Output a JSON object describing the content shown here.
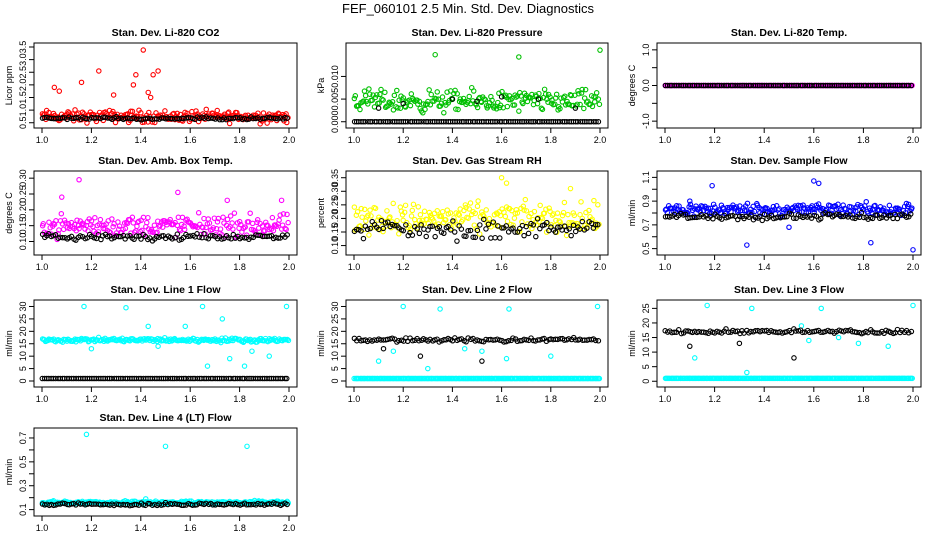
{
  "title": "FEF_060101  2.5 Min. Std. Dev. Diagnostics",
  "colors": {
    "red": "#ff0000",
    "green": "#00c000",
    "magenta": "#ff00ff",
    "yellow": "#ffff00",
    "blue": "#0000ff",
    "cyan": "#00ffff",
    "black": "#000000"
  },
  "chart_data": [
    {
      "type": "scatter",
      "title": "Stan. Dev. Li-820 CO2",
      "xlabel": "",
      "ylabel": "Licor ppm",
      "xlim": [
        1.0,
        2.0
      ],
      "ylim": [
        0.45,
        3.5
      ],
      "xticks": [
        "1.0",
        "1.2",
        "1.4",
        "1.6",
        "1.8",
        "2.0"
      ],
      "yticks": [
        0.5,
        1.0,
        1.5,
        2.0,
        2.5,
        3.0,
        3.5
      ],
      "ytick_labels": [
        "0.5",
        "1.0",
        "1.5",
        "2.0",
        "2.5",
        "3.0",
        "3.5"
      ],
      "series": [
        {
          "color": "red",
          "base": 0.75,
          "spread": 0.35,
          "spikes": [
            [
              1.05,
              1.9
            ],
            [
              1.07,
              1.75
            ],
            [
              1.16,
              2.1
            ],
            [
              1.23,
              2.55
            ],
            [
              1.29,
              1.6
            ],
            [
              1.37,
              2.0
            ],
            [
              1.38,
              2.4
            ],
            [
              1.41,
              3.38
            ],
            [
              1.43,
              1.7
            ],
            [
              1.45,
              2.4
            ],
            [
              1.47,
              2.55
            ],
            [
              1.44,
              1.5
            ]
          ]
        },
        {
          "color": "black",
          "base": 0.68,
          "spread": 0.08,
          "spikes": []
        }
      ]
    },
    {
      "type": "scatter",
      "title": "Stan. Dev. Li-820 Pressure",
      "xlabel": "",
      "ylabel": "kPa",
      "xlim": [
        1.0,
        2.0
      ],
      "ylim": [
        -0.0005,
        0.0165
      ],
      "xticks": [
        "1.0",
        "1.2",
        "1.4",
        "1.6",
        "1.8",
        "2.0"
      ],
      "yticks": [
        0.0,
        0.005,
        0.01
      ],
      "ytick_labels": [
        "0.000",
        "0.005",
        "0.010"
      ],
      "series": [
        {
          "color": "green",
          "base": 0.0045,
          "spread": 0.0035,
          "spikes": [
            [
              1.33,
              0.0148
            ],
            [
              1.67,
              0.0143
            ],
            [
              2.0,
              0.0158
            ]
          ]
        },
        {
          "color": "black",
          "base": 0.0,
          "spread": 0.0,
          "spikes": [
            [
              1.2,
              0.004
            ],
            [
              1.4,
              0.005
            ],
            [
              1.6,
              0.0055
            ],
            [
              1.75,
              0.005
            ],
            [
              1.9,
              0.003
            ],
            [
              1.1,
              0.003
            ],
            [
              1.5,
              0.0045
            ]
          ]
        }
      ]
    },
    {
      "type": "scatter",
      "title": "Stan. Dev. Li-820 Temp.",
      "xlabel": "",
      "ylabel": "degrees C",
      "xlim": [
        1.0,
        2.0
      ],
      "ylim": [
        -1.08,
        1.08
      ],
      "xticks": [
        "1.0",
        "1.2",
        "1.4",
        "1.6",
        "1.8",
        "2.0"
      ],
      "yticks": [
        -1.0,
        -0.5,
        0.0,
        0.5,
        1.0
      ],
      "ytick_labels": [
        "-1.0",
        "",
        "0.0",
        "",
        "1.0"
      ],
      "series": [
        {
          "color": "magenta",
          "base": 0.0,
          "spread": 0.0,
          "spikes": []
        },
        {
          "color": "black",
          "base": 0.0,
          "spread": 0.0,
          "spikes": []
        }
      ]
    },
    {
      "type": "scatter",
      "title": "Stan. Dev. Amb. Box Temp.",
      "xlabel": "",
      "ylabel": "degrees C",
      "xlim": [
        1.0,
        2.0
      ],
      "ylim": [
        0.07,
        0.31
      ],
      "xticks": [
        "1.0",
        "1.2",
        "1.4",
        "1.6",
        "1.8",
        "2.0"
      ],
      "yticks": [
        0.1,
        0.15,
        0.2,
        0.25,
        0.3
      ],
      "ytick_labels": [
        "0.10",
        "0.15",
        "0.20",
        "0.25",
        "0.30"
      ],
      "series": [
        {
          "color": "magenta",
          "base": 0.15,
          "spread": 0.05,
          "spikes": [
            [
              1.15,
              0.295
            ],
            [
              1.08,
              0.24
            ],
            [
              1.55,
              0.255
            ],
            [
              1.75,
              0.23
            ],
            [
              1.97,
              0.23
            ]
          ]
        },
        {
          "color": "black",
          "base": 0.115,
          "spread": 0.015,
          "spikes": []
        }
      ]
    },
    {
      "type": "scatter",
      "title": "Stan. Dev. Gas Stream RH",
      "xlabel": "",
      "ylabel": "percent",
      "xlim": [
        1.0,
        2.0
      ],
      "ylim": [
        0.08,
        0.36
      ],
      "xticks": [
        "1.0",
        "1.2",
        "1.4",
        "1.6",
        "1.8",
        "2.0"
      ],
      "yticks": [
        0.1,
        0.15,
        0.2,
        0.25,
        0.3,
        0.35
      ],
      "ytick_labels": [
        "0.10",
        "0.15",
        "0.20",
        "0.25",
        "0.30",
        "0.35"
      ],
      "series": [
        {
          "color": "yellow",
          "base": 0.2,
          "spread": 0.08,
          "spikes": [
            [
              1.6,
              0.35
            ],
            [
              1.62,
              0.33
            ],
            [
              1.88,
              0.31
            ]
          ]
        },
        {
          "color": "black",
          "base": 0.16,
          "spread": 0.055,
          "spikes": []
        }
      ]
    },
    {
      "type": "scatter",
      "title": "Stan. Dev. Sample Flow",
      "xlabel": "",
      "ylabel": "ml/min",
      "xlim": [
        1.0,
        2.0
      ],
      "ylim": [
        0.48,
        1.12
      ],
      "xticks": [
        "1.0",
        "1.2",
        "1.4",
        "1.6",
        "1.8",
        "2.0"
      ],
      "yticks": [
        0.5,
        0.6,
        0.7,
        0.8,
        0.9,
        1.0,
        1.1
      ],
      "ytick_labels": [
        "0.5",
        "",
        "0.7",
        "",
        "0.9",
        "",
        "1.1"
      ],
      "series": [
        {
          "color": "blue",
          "base": 0.83,
          "spread": 0.08,
          "spikes": [
            [
              1.6,
              1.07
            ],
            [
              1.62,
              1.05
            ],
            [
              1.19,
              1.03
            ],
            [
              1.33,
              0.53
            ],
            [
              1.83,
              0.55
            ],
            [
              2.0,
              0.49
            ],
            [
              1.1,
              0.9
            ],
            [
              1.5,
              0.68
            ]
          ]
        },
        {
          "color": "black",
          "base": 0.77,
          "spread": 0.04,
          "spikes": []
        }
      ]
    },
    {
      "type": "scatter",
      "title": "Stan. Dev. Line 1 Flow",
      "xlabel": "",
      "ylabel": "ml/min",
      "xlim": [
        1.0,
        2.0
      ],
      "ylim": [
        -0.8,
        31
      ],
      "xticks": [
        "1.0",
        "1.2",
        "1.4",
        "1.6",
        "1.8",
        "2.0"
      ],
      "yticks": [
        0,
        5,
        10,
        15,
        20,
        25,
        30
      ],
      "ytick_labels": [
        "0",
        "5",
        "10",
        "15",
        "20",
        "25",
        "30"
      ],
      "series": [
        {
          "color": "cyan",
          "base": 16.5,
          "spread": 1.2,
          "spikes": [
            [
              1.17,
              30
            ],
            [
              1.34,
              29.5
            ],
            [
              1.65,
              30
            ],
            [
              1.99,
              30
            ],
            [
              1.58,
              22
            ],
            [
              1.43,
              22
            ],
            [
              1.73,
              25
            ],
            [
              1.76,
              9
            ],
            [
              1.67,
              6
            ],
            [
              1.82,
              6
            ],
            [
              1.92,
              10
            ],
            [
              1.47,
              14
            ],
            [
              1.85,
              12
            ],
            [
              1.2,
              13
            ]
          ]
        },
        {
          "color": "black",
          "base": 1.0,
          "spread": 0.0,
          "spikes": []
        }
      ]
    },
    {
      "type": "scatter",
      "title": "Stan. Dev. Line 2 Flow",
      "xlabel": "",
      "ylabel": "ml/min",
      "xlim": [
        1.0,
        2.0
      ],
      "ylim": [
        -0.8,
        31
      ],
      "xticks": [
        "1.0",
        "1.2",
        "1.4",
        "1.6",
        "1.8",
        "2.0"
      ],
      "yticks": [
        0,
        5,
        10,
        15,
        20,
        25,
        30
      ],
      "ytick_labels": [
        "0",
        "5",
        "10",
        "15",
        "20",
        "25",
        "30"
      ],
      "series": [
        {
          "color": "cyan",
          "base": 1.0,
          "spread": 0.0,
          "spikes": [
            [
              1.2,
              30
            ],
            [
              1.35,
              29
            ],
            [
              1.63,
              29
            ],
            [
              1.99,
              30
            ],
            [
              1.1,
              8
            ],
            [
              1.3,
              5
            ],
            [
              1.52,
              12
            ],
            [
              1.62,
              9
            ],
            [
              1.8,
              10
            ],
            [
              1.45,
              13
            ],
            [
              1.16,
              12
            ]
          ]
        },
        {
          "color": "black",
          "base": 16.5,
          "spread": 1.2,
          "spikes": [
            [
              1.27,
              10
            ],
            [
              1.52,
              8
            ],
            [
              1.12,
              13
            ]
          ]
        }
      ]
    },
    {
      "type": "scatter",
      "title": "Stan. Dev. Line 3 Flow",
      "xlabel": "",
      "ylabel": "ml/min",
      "xlim": [
        1.0,
        2.0
      ],
      "ylim": [
        -0.6,
        26.5
      ],
      "xticks": [
        "1.0",
        "1.2",
        "1.4",
        "1.6",
        "1.8",
        "2.0"
      ],
      "yticks": [
        0,
        5,
        10,
        15,
        20,
        25
      ],
      "ytick_labels": [
        "0",
        "5",
        "10",
        "15",
        "20",
        "25"
      ],
      "series": [
        {
          "color": "cyan",
          "base": 1.0,
          "spread": 0.0,
          "spikes": [
            [
              1.17,
              26
            ],
            [
              1.35,
              25
            ],
            [
              1.63,
              25
            ],
            [
              2.0,
              26
            ],
            [
              1.12,
              8
            ],
            [
              1.33,
              3
            ],
            [
              1.55,
              19
            ],
            [
              1.58,
              14
            ],
            [
              1.78,
              13
            ],
            [
              1.9,
              12
            ],
            [
              1.7,
              15
            ]
          ]
        },
        {
          "color": "black",
          "base": 17.0,
          "spread": 1.0,
          "spikes": [
            [
              1.1,
              12
            ],
            [
              1.52,
              8
            ],
            [
              1.3,
              13
            ]
          ]
        }
      ]
    },
    {
      "type": "scatter",
      "title": "Stan. Dev. Line 4 (LT) Flow",
      "xlabel": "",
      "ylabel": "ml/min",
      "xlim": [
        1.0,
        2.0
      ],
      "ylim": [
        0.08,
        0.75
      ],
      "xticks": [
        "1.0",
        "1.2",
        "1.4",
        "1.6",
        "1.8",
        "2.0"
      ],
      "yticks": [
        0.1,
        0.2,
        0.3,
        0.4,
        0.5,
        0.6,
        0.7
      ],
      "ytick_labels": [
        "0.1",
        "",
        "0.3",
        "",
        "0.5",
        "",
        "0.7"
      ],
      "series": [
        {
          "color": "cyan",
          "base": 0.16,
          "spread": 0.02,
          "spikes": [
            [
              1.18,
              0.73
            ],
            [
              1.5,
              0.63
            ],
            [
              1.83,
              0.63
            ],
            [
              1.42,
              0.19
            ]
          ]
        },
        {
          "color": "black",
          "base": 0.145,
          "spread": 0.015,
          "spikes": []
        }
      ]
    }
  ]
}
